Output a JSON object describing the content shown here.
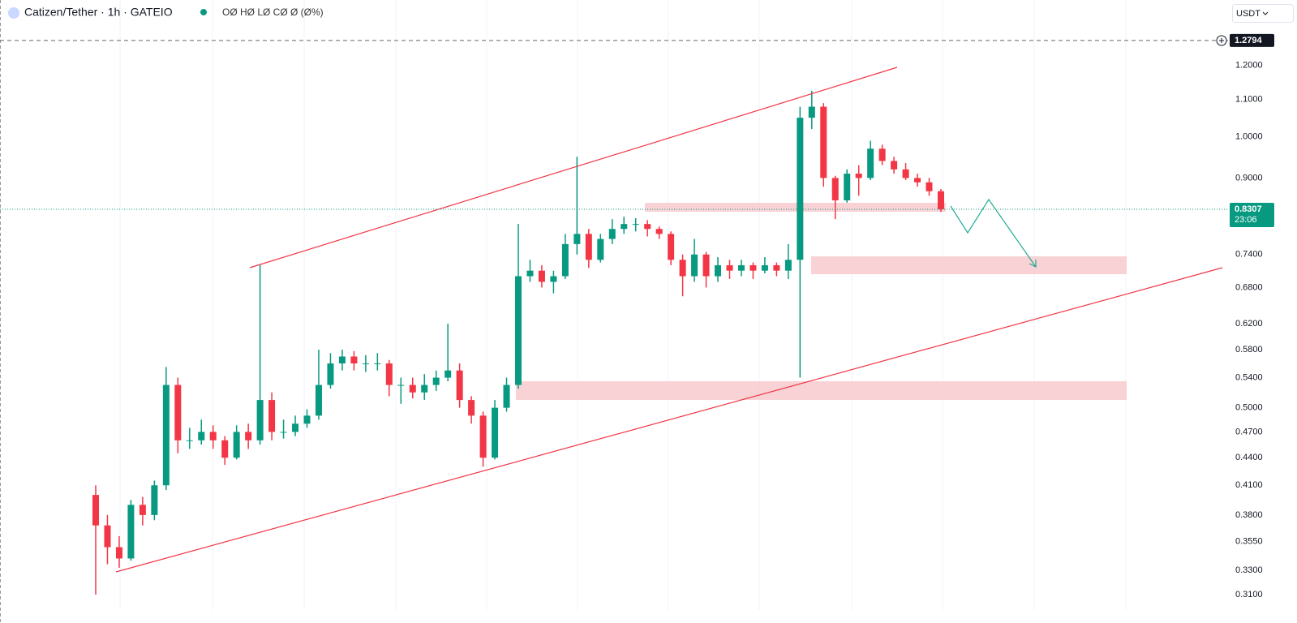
{
  "header": {
    "symbol": "Catizen/Tether · 1h · GATEIO",
    "ohlc": "OØ HØ LØ CØ Ø (Ø%)",
    "currency": "USDT"
  },
  "chart_data": {
    "type": "candlestick",
    "categories": [
      null,
      null,
      null,
      null,
      null,
      null,
      null,
      null,
      null,
      null,
      null,
      null,
      null,
      null,
      null,
      null,
      null,
      null,
      null,
      null,
      null,
      null,
      null,
      null,
      null,
      null,
      null,
      null,
      null,
      null,
      null,
      null,
      null,
      null,
      null,
      null,
      null,
      null,
      null,
      null,
      null,
      null,
      null,
      null,
      null,
      null,
      null,
      null,
      null,
      null,
      null,
      null,
      null,
      null,
      null,
      null,
      null,
      null,
      null,
      null,
      null,
      null,
      null,
      null,
      null,
      null,
      null,
      null,
      null,
      null,
      null,
      null,
      null
    ],
    "open": [
      0.4,
      0.37,
      0.35,
      0.34,
      0.39,
      0.38,
      0.41,
      0.53,
      0.46,
      0.46,
      0.47,
      0.46,
      0.44,
      0.47,
      0.46,
      0.51,
      0.47,
      0.47,
      0.48,
      0.49,
      0.53,
      0.56,
      0.57,
      0.56,
      0.56,
      0.56,
      0.53,
      0.53,
      0.52,
      0.53,
      0.54,
      0.55,
      0.51,
      0.49,
      0.44,
      0.5,
      0.53,
      0.7,
      0.71,
      0.69,
      0.7,
      0.76,
      0.78,
      0.73,
      0.77,
      0.79,
      0.8,
      0.8,
      0.79,
      0.78,
      0.73,
      0.7,
      0.74,
      0.7,
      0.72,
      0.71,
      0.72,
      0.71,
      0.72,
      0.71,
      0.73,
      1.05,
      1.08,
      0.9,
      0.85,
      0.91,
      0.9,
      0.97,
      0.94,
      0.92,
      0.9,
      0.89,
      0.87
    ],
    "high": [
      0.41,
      0.38,
      0.36,
      0.395,
      0.398,
      0.415,
      0.555,
      0.54,
      0.475,
      0.485,
      0.478,
      0.465,
      0.478,
      0.48,
      0.72,
      0.52,
      0.485,
      0.49,
      0.498,
      0.58,
      0.575,
      0.58,
      0.578,
      0.572,
      0.575,
      0.565,
      0.54,
      0.54,
      0.545,
      0.55,
      0.62,
      0.56,
      0.515,
      0.495,
      0.51,
      0.54,
      0.8,
      0.73,
      0.72,
      0.71,
      0.78,
      0.95,
      0.79,
      0.78,
      0.81,
      0.815,
      0.812,
      0.808,
      0.795,
      0.785,
      0.74,
      0.77,
      0.745,
      0.735,
      0.73,
      0.73,
      0.725,
      0.735,
      0.725,
      0.76,
      1.08,
      1.125,
      1.09,
      0.905,
      0.92,
      0.93,
      0.99,
      0.98,
      0.95,
      0.935,
      0.91,
      0.9,
      0.875
    ],
    "low": [
      0.31,
      0.335,
      0.332,
      0.338,
      0.37,
      0.375,
      0.405,
      0.445,
      0.45,
      0.455,
      0.45,
      0.432,
      0.438,
      0.45,
      0.455,
      0.46,
      0.462,
      0.465,
      0.475,
      0.485,
      0.525,
      0.55,
      0.55,
      0.548,
      0.55,
      0.515,
      0.505,
      0.512,
      0.51,
      0.522,
      0.535,
      0.5,
      0.48,
      0.43,
      0.438,
      0.495,
      0.525,
      0.69,
      0.68,
      0.67,
      0.695,
      0.74,
      0.715,
      0.725,
      0.76,
      0.78,
      0.785,
      0.775,
      0.77,
      0.72,
      0.665,
      0.69,
      0.68,
      0.69,
      0.695,
      0.7,
      0.695,
      0.705,
      0.7,
      0.695,
      0.54,
      1.02,
      0.88,
      0.81,
      0.845,
      0.86,
      0.895,
      0.93,
      0.91,
      0.895,
      0.88,
      0.86,
      0.825
    ],
    "close": [
      0.37,
      0.35,
      0.34,
      0.39,
      0.38,
      0.41,
      0.53,
      0.46,
      0.46,
      0.47,
      0.46,
      0.44,
      0.47,
      0.46,
      0.51,
      0.47,
      0.47,
      0.48,
      0.49,
      0.53,
      0.56,
      0.57,
      0.56,
      0.56,
      0.56,
      0.53,
      0.53,
      0.52,
      0.53,
      0.54,
      0.55,
      0.51,
      0.49,
      0.44,
      0.5,
      0.53,
      0.7,
      0.71,
      0.69,
      0.7,
      0.76,
      0.78,
      0.73,
      0.77,
      0.79,
      0.8,
      0.8,
      0.79,
      0.78,
      0.73,
      0.7,
      0.74,
      0.7,
      0.72,
      0.71,
      0.72,
      0.71,
      0.72,
      0.71,
      0.73,
      1.05,
      1.08,
      0.9,
      0.85,
      0.91,
      0.9,
      0.97,
      0.94,
      0.92,
      0.9,
      0.89,
      0.87,
      0.831
    ],
    "up_color": "#089981",
    "down_color": "#f23645",
    "log_scale": true,
    "grid": true,
    "ylim": [
      0.298,
      1.419
    ],
    "yticks": [
      {
        "value": 1.2,
        "label": "1.2000"
      },
      {
        "value": 1.1,
        "label": "1.1000"
      },
      {
        "value": 1.0,
        "label": "1.0000"
      },
      {
        "value": 0.9,
        "label": "0.9000"
      },
      {
        "value": 0.74,
        "label": "0.7400"
      },
      {
        "value": 0.68,
        "label": "0.6800"
      },
      {
        "value": 0.62,
        "label": "0.6200"
      },
      {
        "value": 0.58,
        "label": "0.5800"
      },
      {
        "value": 0.54,
        "label": "0.5400"
      },
      {
        "value": 0.5,
        "label": "0.5000"
      },
      {
        "value": 0.47,
        "label": "0.4700"
      },
      {
        "value": 0.44,
        "label": "0.4400"
      },
      {
        "value": 0.41,
        "label": "0.4100"
      },
      {
        "value": 0.38,
        "label": "0.3800"
      },
      {
        "value": 0.355,
        "label": "0.3550"
      },
      {
        "value": 0.33,
        "label": "0.3300"
      },
      {
        "value": 0.31,
        "label": "0.3100"
      }
    ],
    "price_lines": [
      {
        "value": 1.2794
      },
      {
        "value": 0.8307,
        "countdown": "23:06"
      }
    ]
  }
}
